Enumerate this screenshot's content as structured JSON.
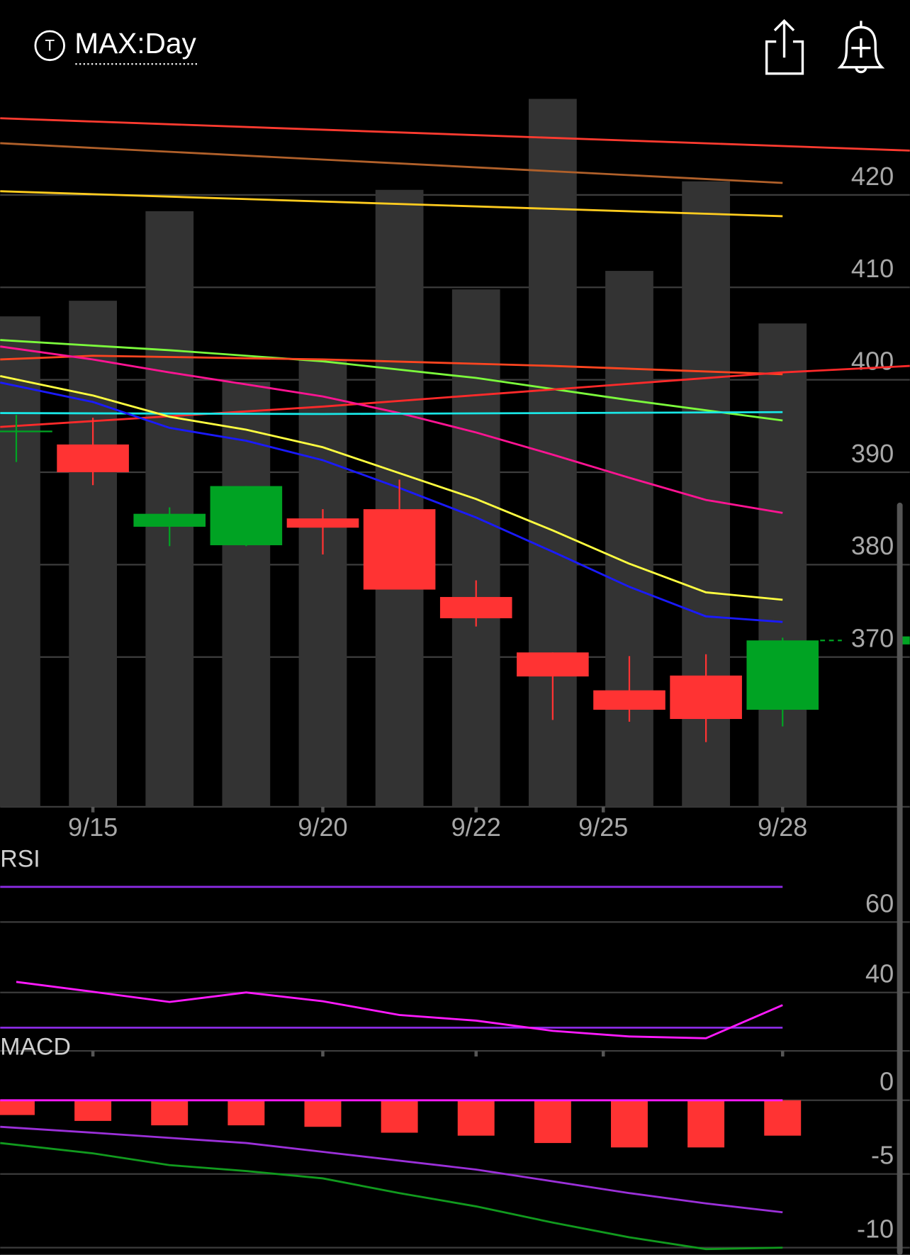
{
  "header": {
    "logo": "T",
    "title": "MAX:Day"
  },
  "chart_data": [
    {
      "type": "candlestick",
      "x": [
        0,
        1,
        2,
        3,
        4,
        5,
        6,
        7,
        8,
        9,
        10
      ],
      "open": [
        394.4,
        393.0,
        384.1,
        382.1,
        385.0,
        386.0,
        376.5,
        370.5,
        366.4,
        368.0,
        364.3
      ],
      "high": [
        396.2,
        395.9,
        386.2,
        388.5,
        386.0,
        389.2,
        378.3,
        370.5,
        370.1,
        370.3,
        372.1
      ],
      "low": [
        391.1,
        388.6,
        382.0,
        382.0,
        381.1,
        377.3,
        373.3,
        363.2,
        363.0,
        360.8,
        362.5
      ],
      "close": [
        394.5,
        390.0,
        385.5,
        388.5,
        384.0,
        377.3,
        374.2,
        367.9,
        364.3,
        363.3,
        371.8
      ],
      "up_color": "#00a323",
      "down_color": "#ff3333",
      "volume": {
        "values": [
          345,
          356,
          419,
          299,
          314,
          434,
          364,
          498,
          377,
          440,
          340
        ],
        "color": "#333333",
        "axis": "y2"
      },
      "y2lim": [
        0,
        500
      ],
      "lines": [
        {
          "color": "#ff3b30",
          "x": [
            -0.21,
            11.66
          ],
          "values": [
            428.3,
            424.8
          ]
        },
        {
          "color": "#b0602a",
          "x": [
            -0.21,
            10
          ],
          "values": [
            425.6,
            421.3
          ]
        },
        {
          "color": "#ffcc1f",
          "x": [
            -0.21,
            10
          ],
          "values": [
            420.4,
            417.7
          ]
        },
        {
          "color": "#7cfc3c",
          "x": [
            -0.21,
            2,
            4,
            6,
            8,
            10
          ],
          "values": [
            404.3,
            403.2,
            402.0,
            400.2,
            397.8,
            395.6
          ]
        },
        {
          "color": "#ff4520",
          "x": [
            -0.21,
            1,
            4,
            7,
            10
          ],
          "values": [
            402.2,
            402.6,
            402.2,
            401.5,
            400.6
          ]
        },
        {
          "color": "#ff2a2a",
          "x": [
            -0.21,
            4,
            10,
            11.66
          ],
          "values": [
            394.9,
            397.1,
            400.8,
            401.5
          ]
        },
        {
          "color": "#ff1493",
          "x": [
            -0.21,
            1,
            2,
            3,
            4,
            5,
            6,
            7,
            8,
            9,
            10
          ],
          "values": [
            403.6,
            402.2,
            400.8,
            399.5,
            398.2,
            396.4,
            394.3,
            391.9,
            389.4,
            387.0,
            385.6
          ]
        },
        {
          "color": "#19e6e6",
          "x": [
            -0.21,
            4,
            10
          ],
          "values": [
            396.4,
            396.3,
            396.5
          ]
        },
        {
          "color": "#ffff40",
          "x": [
            -0.21,
            1,
            2,
            3,
            4,
            5,
            6,
            7,
            8,
            9,
            10
          ],
          "values": [
            400.4,
            398.3,
            396.0,
            394.6,
            392.7,
            389.9,
            387.1,
            383.7,
            380.1,
            377.0,
            376.2
          ]
        },
        {
          "color": "#1a1aff",
          "x": [
            -0.21,
            1,
            2,
            3,
            4,
            5,
            6,
            7,
            8,
            9,
            10
          ],
          "values": [
            399.7,
            397.6,
            394.8,
            393.4,
            391.3,
            388.3,
            385.1,
            381.4,
            377.6,
            374.4,
            373.8
          ]
        }
      ],
      "xlim": [
        -0.21,
        11.66
      ],
      "xticks": [
        {
          "value": 1,
          "label": "9/15"
        },
        {
          "value": 4,
          "label": "9/20"
        },
        {
          "value": 6,
          "label": "9/22"
        },
        {
          "value": 7.66,
          "label": "9/25"
        },
        {
          "value": 10,
          "label": "9/28"
        }
      ],
      "ylim": [
        353.8,
        430.7
      ],
      "yticks": [
        420,
        410,
        400,
        390,
        380,
        370
      ],
      "grid": true
    },
    {
      "type": "line",
      "title": "RSI",
      "x": [
        0,
        1,
        2,
        3,
        4,
        5,
        6,
        7,
        8,
        9,
        10
      ],
      "series": [
        {
          "color": "#ff1aff",
          "values": [
            43.0,
            40.2,
            37.3,
            40.0,
            37.5,
            33.6,
            32.0,
            29.1,
            27.5,
            27.0,
            36.4
          ]
        }
      ],
      "levels": [
        70,
        30
      ],
      "level_color": "#8a2be2",
      "xlim": [
        -0.21,
        11.66
      ],
      "ylim": [
        23.4,
        74.1
      ],
      "yticks": [
        60,
        40
      ],
      "grid": true
    },
    {
      "type": "macd",
      "title": "MACD",
      "x": [
        0,
        1,
        2,
        3,
        4,
        5,
        6,
        7,
        8,
        9,
        10
      ],
      "histogram": {
        "color": "#ff3333",
        "values": [
          -1.0,
          -1.4,
          -1.7,
          -1.7,
          -1.8,
          -2.2,
          -2.4,
          -2.9,
          -3.2,
          -3.2,
          -2.4
        ]
      },
      "lines": [
        {
          "color": "#ff1aff",
          "x": [
            -0.21,
            10
          ],
          "values": [
            0,
            0
          ]
        },
        {
          "color": "#9b30d9",
          "x": [
            -0.21,
            1,
            3,
            4,
            6,
            8,
            9,
            10
          ],
          "values": [
            -1.8,
            -2.2,
            -2.9,
            -3.5,
            -4.7,
            -6.3,
            -7.0,
            -7.6
          ]
        },
        {
          "color": "#119a1e",
          "x": [
            -0.21,
            1,
            2,
            3,
            4,
            5,
            6,
            7,
            8,
            9,
            10
          ],
          "values": [
            -2.9,
            -3.6,
            -4.4,
            -4.8,
            -5.3,
            -6.3,
            -7.2,
            -8.3,
            -9.3,
            -10.1,
            -10.0
          ]
        }
      ],
      "xlim": [
        -0.21,
        11.66
      ],
      "ylim": [
        -10.5,
        2.7
      ],
      "yticks": [
        0,
        -5,
        -10
      ],
      "grid": true
    }
  ]
}
